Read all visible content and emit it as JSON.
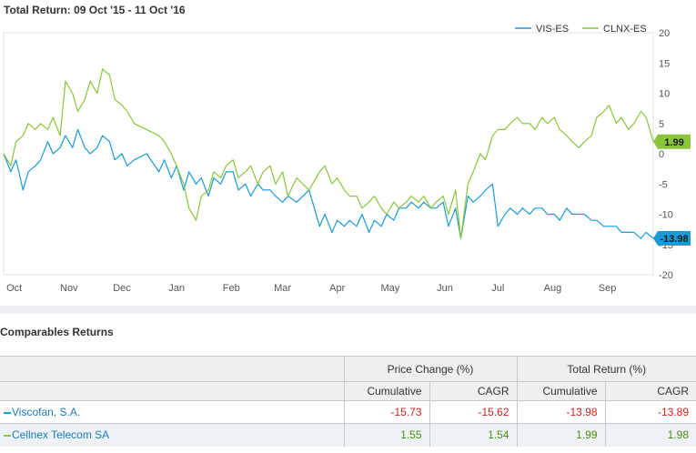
{
  "chart_data": {
    "type": "line",
    "title": "Total Return: 09 Oct '15 - 11 Oct '16",
    "x_ticks": [
      "Oct",
      "Nov",
      "Dec",
      "Jan",
      "Feb",
      "Mar",
      "Apr",
      "May",
      "Jun",
      "Jul",
      "Aug",
      "Sep"
    ],
    "y_ticks": [
      20,
      15,
      10,
      5,
      0,
      -5,
      -10,
      -15,
      -20
    ],
    "ylim": [
      -20,
      20
    ],
    "legend_position": "top-right",
    "grid": false,
    "series": [
      {
        "name": "VIS-ES",
        "color": "#1a9bd7",
        "last_value": "-13.98",
        "x": [
          "2015-10-09",
          "2015-10-13",
          "2015-10-16",
          "2015-10-20",
          "2015-10-23",
          "2015-10-27",
          "2015-10-30",
          "2015-11-03",
          "2015-11-06",
          "2015-11-10",
          "2015-11-13",
          "2015-11-17",
          "2015-11-20",
          "2015-11-24",
          "2015-11-27",
          "2015-12-01",
          "2015-12-04",
          "2015-12-08",
          "2015-12-11",
          "2015-12-15",
          "2015-12-18",
          "2015-12-22",
          "2015-12-29",
          "2016-01-05",
          "2016-01-08",
          "2016-01-12",
          "2016-01-15",
          "2016-01-19",
          "2016-01-22",
          "2016-01-26",
          "2016-01-29",
          "2016-02-02",
          "2016-02-05",
          "2016-02-09",
          "2016-02-12",
          "2016-02-16",
          "2016-02-19",
          "2016-02-23",
          "2016-02-26",
          "2016-03-01",
          "2016-03-04",
          "2016-03-08",
          "2016-03-11",
          "2016-03-15",
          "2016-03-18",
          "2016-03-23",
          "2016-03-30",
          "2016-04-05",
          "2016-04-08",
          "2016-04-12",
          "2016-04-15",
          "2016-04-19",
          "2016-04-22",
          "2016-04-26",
          "2016-04-29",
          "2016-05-03",
          "2016-05-06",
          "2016-05-10",
          "2016-05-13",
          "2016-05-17",
          "2016-05-20",
          "2016-05-24",
          "2016-05-27",
          "2016-05-31",
          "2016-06-03",
          "2016-06-07",
          "2016-06-10",
          "2016-06-14",
          "2016-06-17",
          "2016-06-21",
          "2016-06-24",
          "2016-06-28",
          "2016-07-01",
          "2016-07-05",
          "2016-07-08",
          "2016-07-12",
          "2016-07-15",
          "2016-07-19",
          "2016-07-22",
          "2016-07-26",
          "2016-07-29",
          "2016-08-02",
          "2016-08-05",
          "2016-08-09",
          "2016-08-12",
          "2016-08-16",
          "2016-08-19",
          "2016-08-23",
          "2016-08-26",
          "2016-08-30",
          "2016-09-02",
          "2016-09-06",
          "2016-09-09",
          "2016-09-13",
          "2016-09-16",
          "2016-09-20",
          "2016-09-23",
          "2016-09-27",
          "2016-09-30",
          "2016-10-04",
          "2016-10-07",
          "2016-10-11"
        ],
        "values": [
          0,
          -3,
          -1,
          -6,
          -3,
          -2,
          -1,
          2,
          0,
          1,
          3,
          1,
          4,
          1,
          0,
          1,
          3,
          2,
          -1,
          0,
          -2,
          -1,
          0,
          -3,
          -1,
          -4,
          -2,
          -6,
          -3,
          -5,
          -4,
          -7,
          -4,
          -5,
          -3,
          -3,
          -6,
          -5,
          -7,
          -5,
          -6,
          -6,
          -7,
          -8,
          -7,
          -8,
          -6,
          -12,
          -10,
          -13,
          -11,
          -12,
          -11,
          -12,
          -10,
          -13,
          -11,
          -12,
          -10,
          -11,
          -9,
          -9,
          -8,
          -9,
          -8,
          -9,
          -9,
          -8,
          -12,
          -9,
          -14,
          -7,
          -8,
          -7,
          -6,
          -5,
          -12,
          -10,
          -9,
          -10,
          -9,
          -10,
          -9,
          -9,
          -10,
          -10,
          -11,
          -9,
          -10,
          -10,
          -10,
          -11,
          -11,
          -12,
          -12,
          -12,
          -13,
          -13,
          -13,
          -14,
          -13,
          -13.98
        ]
      },
      {
        "name": "CLNX-ES",
        "color": "#8cc43c",
        "last_value": "1.99",
        "x": [
          "2015-10-09",
          "2015-10-13",
          "2015-10-16",
          "2015-10-20",
          "2015-10-23",
          "2015-10-27",
          "2015-10-30",
          "2015-11-03",
          "2015-11-06",
          "2015-11-10",
          "2015-11-13",
          "2015-11-17",
          "2015-11-20",
          "2015-11-24",
          "2015-11-27",
          "2015-12-01",
          "2015-12-04",
          "2015-12-08",
          "2015-12-11",
          "2015-12-15",
          "2015-12-18",
          "2015-12-22",
          "2015-12-29",
          "2016-01-05",
          "2016-01-08",
          "2016-01-12",
          "2016-01-15",
          "2016-01-19",
          "2016-01-22",
          "2016-01-26",
          "2016-01-29",
          "2016-02-02",
          "2016-02-05",
          "2016-02-09",
          "2016-02-12",
          "2016-02-16",
          "2016-02-19",
          "2016-02-23",
          "2016-02-26",
          "2016-03-01",
          "2016-03-04",
          "2016-03-08",
          "2016-03-11",
          "2016-03-15",
          "2016-03-18",
          "2016-03-23",
          "2016-03-30",
          "2016-04-05",
          "2016-04-08",
          "2016-04-12",
          "2016-04-15",
          "2016-04-19",
          "2016-04-22",
          "2016-04-26",
          "2016-04-29",
          "2016-05-03",
          "2016-05-06",
          "2016-05-10",
          "2016-05-13",
          "2016-05-17",
          "2016-05-20",
          "2016-05-24",
          "2016-05-27",
          "2016-05-31",
          "2016-06-03",
          "2016-06-07",
          "2016-06-10",
          "2016-06-14",
          "2016-06-17",
          "2016-06-21",
          "2016-06-24",
          "2016-06-28",
          "2016-07-01",
          "2016-07-05",
          "2016-07-08",
          "2016-07-12",
          "2016-07-15",
          "2016-07-19",
          "2016-07-22",
          "2016-07-26",
          "2016-07-29",
          "2016-08-02",
          "2016-08-05",
          "2016-08-09",
          "2016-08-12",
          "2016-08-16",
          "2016-08-19",
          "2016-08-23",
          "2016-08-26",
          "2016-08-30",
          "2016-09-02",
          "2016-09-06",
          "2016-09-09",
          "2016-09-13",
          "2016-09-16",
          "2016-09-20",
          "2016-09-23",
          "2016-09-27",
          "2016-09-30",
          "2016-10-04",
          "2016-10-07",
          "2016-10-11"
        ],
        "values": [
          0,
          -2,
          2,
          3,
          5,
          4,
          5,
          4,
          6,
          3,
          12,
          10,
          7,
          9,
          12,
          10,
          14,
          13,
          9,
          8,
          7,
          5,
          4,
          3,
          2,
          0,
          -2,
          -5,
          -9,
          -11,
          -7,
          -6,
          -3,
          -4,
          -2,
          -1,
          -4,
          -3,
          -2,
          -5,
          -3,
          -2,
          -5,
          -3,
          -7,
          -4,
          -6,
          -3,
          -2,
          -5,
          -4,
          -6,
          -7,
          -7,
          -9,
          -8,
          -7,
          -9,
          -10,
          -8,
          -9,
          -8,
          -7,
          -8,
          -7,
          -9,
          -8,
          -7,
          -10,
          -6,
          -14,
          -5,
          -3,
          0,
          -1,
          3,
          4,
          4,
          5,
          6,
          5,
          5,
          4,
          6,
          5,
          6,
          4,
          3,
          2,
          1,
          2,
          3,
          6,
          7,
          8,
          5,
          6,
          4,
          5,
          7,
          6,
          1.99
        ]
      }
    ]
  },
  "comparables": {
    "title": "Comparables Returns",
    "group_headers": [
      "Price Change (%)",
      "Total Return (%)"
    ],
    "sub_headers": [
      "Cumulative",
      "CAGR",
      "Cumulative",
      "CAGR"
    ],
    "rows": [
      {
        "name": "Viscofan, S.A.",
        "color": "#1a9bd7",
        "values": [
          "-15.73",
          "-15.62",
          "-13.98",
          "-13.89"
        ]
      },
      {
        "name": "Cellnex Telecom SA",
        "color": "#8cc43c",
        "values": [
          "1.55",
          "1.54",
          "1.99",
          "1.98"
        ]
      }
    ]
  }
}
